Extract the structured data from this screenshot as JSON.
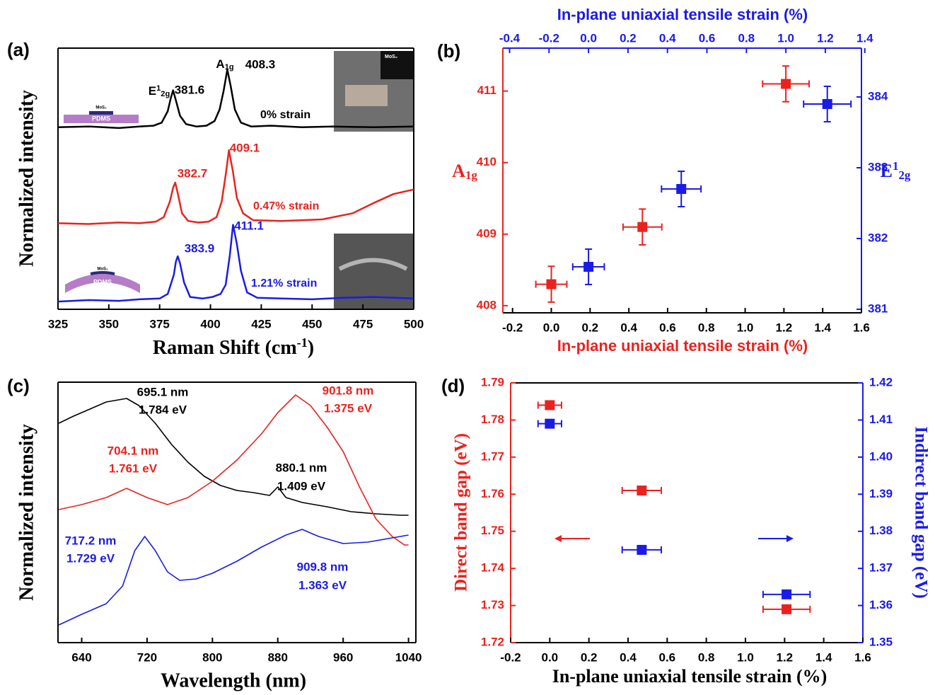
{
  "chart_data": [
    {
      "type": "line",
      "panel_label": "(a)",
      "xlabel": [
        "Raman Shift (cm",
        "-1",
        ")"
      ],
      "ylabel": "Normalized intensity",
      "xlim": [
        325,
        500
      ],
      "xticks": [
        325,
        350,
        375,
        400,
        425,
        450,
        475,
        500
      ],
      "ylim": [
        0,
        3.4
      ],
      "series": [
        {
          "name": "0% strain",
          "color": "#000000",
          "x": [
            325,
            340,
            355,
            365,
            372,
            376,
            379,
            380.5,
            381.6,
            383,
            385,
            388,
            393,
            398,
            402,
            404.5,
            406.5,
            408.3,
            410,
            412,
            415,
            420,
            430,
            445,
            460,
            480,
            500
          ],
          "values": [
            2.37,
            2.38,
            2.36,
            2.38,
            2.39,
            2.43,
            2.58,
            2.75,
            2.85,
            2.72,
            2.52,
            2.41,
            2.38,
            2.39,
            2.45,
            2.6,
            2.85,
            3.12,
            2.9,
            2.6,
            2.43,
            2.38,
            2.39,
            2.37,
            2.38,
            2.37,
            2.38
          ]
        },
        {
          "name": "0.47% strain",
          "color": "#e8231f",
          "x": [
            325,
            340,
            355,
            365,
            373,
            377,
            380,
            381.6,
            382.7,
            384,
            386,
            389,
            394,
            399,
            403,
            405.5,
            407.5,
            409.1,
            411,
            413,
            416,
            421,
            435,
            455,
            470,
            480,
            490,
            500
          ],
          "values": [
            1.12,
            1.11,
            1.13,
            1.12,
            1.14,
            1.2,
            1.4,
            1.58,
            1.65,
            1.5,
            1.25,
            1.15,
            1.13,
            1.14,
            1.2,
            1.4,
            1.75,
            2.07,
            1.8,
            1.45,
            1.25,
            1.16,
            1.15,
            1.17,
            1.25,
            1.38,
            1.5,
            1.56
          ]
        },
        {
          "name": "1.21% strain",
          "color": "#1b1be6",
          "x": [
            325,
            340,
            355,
            365,
            375,
            379,
            382,
            383,
            383.9,
            385,
            387,
            390,
            396,
            401,
            405,
            407.5,
            409.5,
            411.1,
            413,
            415,
            418,
            423,
            435,
            450,
            465,
            480,
            500
          ],
          "values": [
            0.1,
            0.12,
            0.11,
            0.13,
            0.14,
            0.2,
            0.45,
            0.62,
            0.69,
            0.6,
            0.35,
            0.16,
            0.14,
            0.16,
            0.2,
            0.32,
            0.7,
            1.1,
            0.85,
            0.5,
            0.22,
            0.15,
            0.14,
            0.13,
            0.15,
            0.16,
            0.14
          ]
        }
      ],
      "annotations": [
        {
          "text": [
            "E",
            "1",
            "2g"
          ],
          "color": "#000000"
        },
        {
          "text": "381.6",
          "color": "#000000"
        },
        {
          "text": [
            "A",
            "1g"
          ],
          "color": "#000000"
        },
        {
          "text": "408.3",
          "color": "#000000"
        },
        {
          "text": "382.7",
          "color": "#e8231f"
        },
        {
          "text": "409.1",
          "color": "#e8231f"
        },
        {
          "text": "383.9",
          "color": "#1b1be6"
        },
        {
          "text": "411.1",
          "color": "#1b1be6"
        }
      ],
      "inset_labels": [
        "MoS₂",
        "MoS₂",
        "PDMS",
        "MoS₂",
        "PDMS"
      ]
    },
    {
      "type": "scatter",
      "panel_label": "(b)",
      "xlabel": "In-plane uniaxial tensile strain (%)",
      "x2label": "In-plane uniaxial tensile strain (%)",
      "ylabel": [
        "A",
        "1g"
      ],
      "y2label": [
        "E",
        "1",
        "2g"
      ],
      "xlabel_color": "#e8231f",
      "x2label_color": "#1b1be6",
      "ylabel_color": "#e8231f",
      "y2label_color": "#1b1be6",
      "xlim": [
        -0.25,
        1.6
      ],
      "xticks": [
        -0.2,
        {
          "value": 0,
          "label": "0.0"
        },
        0.2,
        0.4,
        0.6,
        0.8,
        {
          "value": 1,
          "label": "1.0"
        },
        1.2,
        1.4,
        1.6
      ],
      "x2lim": [
        -0.434,
        1.383
      ],
      "x2ticks": [
        -0.4,
        -0.2,
        {
          "value": 0,
          "label": "0.0"
        },
        0.2,
        0.4,
        0.6,
        0.8,
        {
          "value": 1,
          "label": "1.0"
        },
        1.2,
        1.4
      ],
      "ylim": [
        407.9,
        411.6
      ],
      "yticks": [
        408,
        409,
        410,
        411
      ],
      "y2lim": [
        380.95,
        384.69
      ],
      "y2ticks": [
        381,
        382,
        383,
        384
      ],
      "series": [
        {
          "color": "#e8231f",
          "x": [
            0,
            0.47,
            1.21
          ],
          "values": [
            408.3,
            409.1,
            411.1
          ],
          "xerr": [
            0.08,
            0.1,
            0.12
          ],
          "yerr": [
            0.25,
            0.25,
            0.25
          ]
        },
        {
          "color": "#1b1be6",
          "axis": "y2",
          "xaxis": "x2",
          "x": [
            0,
            0.47,
            1.21
          ],
          "values": [
            381.6,
            382.7,
            383.9
          ],
          "xerr": [
            0.08,
            0.1,
            0.12
          ],
          "yerr": [
            0.25,
            0.25,
            0.25
          ]
        }
      ]
    },
    {
      "type": "line",
      "panel_label": "(c)",
      "xlabel": "Wavelength (nm)",
      "ylabel": "Normalized intensity",
      "xlim": [
        611,
        1049
      ],
      "xticks": [
        640,
        720,
        800,
        880,
        960,
        1040
      ],
      "ylim": [
        0,
        3.68
      ],
      "series": [
        {
          "color": "#000000",
          "x": [
            612,
            630,
            650,
            670,
            685,
            695,
            710,
            730,
            750,
            770,
            790,
            810,
            830,
            850,
            870,
            880,
            890,
            910,
            940,
            970,
            1000,
            1030,
            1040
          ],
          "values": [
            3.1,
            3.2,
            3.3,
            3.4,
            3.43,
            3.45,
            3.35,
            3.1,
            2.8,
            2.55,
            2.35,
            2.22,
            2.15,
            2.12,
            2.08,
            2.2,
            2.05,
            1.98,
            1.92,
            1.85,
            1.82,
            1.8,
            1.8
          ]
        },
        {
          "color": "#e8231f",
          "x": [
            612,
            640,
            670,
            695,
            720,
            745,
            770,
            800,
            830,
            860,
            880,
            901.8,
            920,
            940,
            960,
            980,
            1000,
            1020,
            1035,
            1040
          ],
          "values": [
            1.88,
            1.95,
            2.05,
            2.18,
            2.05,
            1.95,
            2.05,
            2.28,
            2.58,
            2.95,
            3.25,
            3.5,
            3.35,
            3.05,
            2.7,
            2.2,
            1.75,
            1.5,
            1.38,
            1.38
          ]
        },
        {
          "color": "#1b1be6",
          "x": [
            612,
            640,
            670,
            690,
            705,
            717.2,
            730,
            745,
            760,
            780,
            800,
            830,
            860,
            890,
            909.8,
            930,
            960,
            990,
            1020,
            1040
          ],
          "values": [
            0.25,
            0.4,
            0.55,
            0.8,
            1.3,
            1.5,
            1.3,
            1.0,
            0.88,
            0.9,
            0.98,
            1.15,
            1.35,
            1.52,
            1.6,
            1.5,
            1.4,
            1.42,
            1.48,
            1.52
          ]
        }
      ],
      "annotations": [
        {
          "text": "695.1 nm",
          "color": "#000000"
        },
        {
          "text": "1.784 eV",
          "color": "#000000"
        },
        {
          "text": "901.8 nm",
          "color": "#e8231f"
        },
        {
          "text": "1.375 eV",
          "color": "#e8231f"
        },
        {
          "text": "704.1 nm",
          "color": "#e8231f"
        },
        {
          "text": "1.761 eV",
          "color": "#e8231f"
        },
        {
          "text": "880.1 nm",
          "color": "#000000"
        },
        {
          "text": "1.409 eV",
          "color": "#000000"
        },
        {
          "text": "717.2 nm",
          "color": "#1b1be6"
        },
        {
          "text": "1.729 eV",
          "color": "#1b1be6"
        },
        {
          "text": "909.8 nm",
          "color": "#1b1be6"
        },
        {
          "text": "1.363 eV",
          "color": "#1b1be6"
        }
      ]
    },
    {
      "type": "scatter",
      "panel_label": "(d)",
      "xlabel": "In-plane uniaxial tensile strain (%)",
      "ylabel": "Direct band gap (eV)",
      "y2label": "Indirect band gap (eV)",
      "xlabel_color": "#000000",
      "ylabel_color": "#e8231f",
      "y2label_color": "#1b1be6",
      "xlim": [
        -0.2,
        1.6
      ],
      "xticks": [
        -0.2,
        {
          "value": 0,
          "label": "0.0"
        },
        0.2,
        0.4,
        0.6,
        0.8,
        {
          "value": 1,
          "label": "1.0"
        },
        1.2,
        1.4,
        1.6
      ],
      "ylim": [
        1.72,
        1.79
      ],
      "yticks": [
        1.72,
        1.73,
        1.74,
        1.75,
        1.76,
        1.77,
        1.78,
        1.79
      ],
      "y2lim": [
        1.35,
        1.42
      ],
      "y2ticks": [
        1.35,
        1.36,
        1.37,
        1.38,
        1.39,
        {
          "value": 1.4,
          "label": "1.40"
        },
        1.41,
        1.42
      ],
      "series": [
        {
          "color": "#e8231f",
          "x": [
            0,
            0.47,
            1.21
          ],
          "values": [
            1.784,
            1.761,
            1.729
          ],
          "xerr": [
            0.06,
            0.1,
            0.12
          ]
        },
        {
          "color": "#1b1be6",
          "axis": "y2",
          "x": [
            0,
            0.47,
            1.21
          ],
          "values": [
            1.409,
            1.375,
            1.363
          ],
          "xerr": [
            0.06,
            0.1,
            0.12
          ]
        }
      ]
    }
  ]
}
